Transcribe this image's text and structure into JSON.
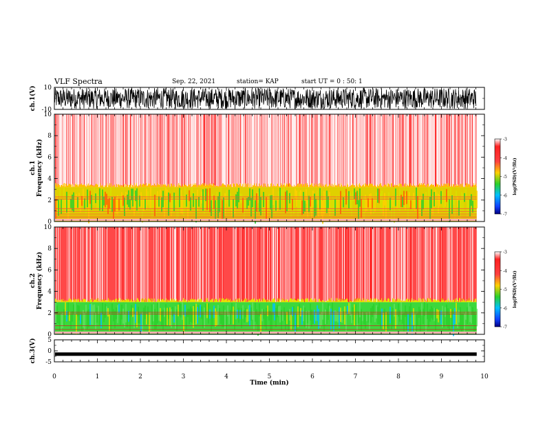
{
  "header": {
    "title": "VLF Spectra",
    "date": "Sep. 22, 2021",
    "station": "station= KAP",
    "start_ut": "start  UT =   0 : 50: 1"
  },
  "colors": {
    "scale": [
      "#ffffff",
      "#ff2020",
      "#ffd000",
      "#d8e000",
      "#2ad02a",
      "#00c0ff",
      "#1060ff",
      "#000090"
    ]
  },
  "chart_data": [
    {
      "type": "line",
      "panel": "ch1-waveform",
      "ylabel": "ch.1(V)",
      "ylim": [
        -10,
        10
      ],
      "yticks": [
        "10",
        "-10"
      ],
      "xlim": [
        0,
        10
      ],
      "description_values": {
        "amplitude_min": -10,
        "amplitude_max": 10
      }
    },
    {
      "type": "heatmap",
      "panel": "ch1-spectrogram",
      "ylabel": "ch.1\nFrequency  (kHz)",
      "ylim": [
        0,
        10
      ],
      "yticks": [
        "0",
        "2",
        "4",
        "6",
        "8",
        "10"
      ],
      "xlim": [
        0,
        9.82
      ],
      "bands": [
        {
          "fmin": 0,
          "fmax": 3.2,
          "log_psd": -4.6
        },
        {
          "fmin": 3.2,
          "fmax": 10,
          "log_psd": -3.3
        }
      ],
      "colorbar": {
        "label": "log(PSD)(V²/Hz)",
        "range": [
          -7,
          -3
        ],
        "ticks": [
          "-3",
          "-4",
          "-5",
          "-6",
          "-7"
        ]
      }
    },
    {
      "type": "heatmap",
      "panel": "ch2-spectrogram",
      "ylabel": "ch.2\nFrequency  (kHz)",
      "ylim": [
        0,
        10
      ],
      "yticks": [
        "0",
        "2",
        "4",
        "6",
        "8",
        "10"
      ],
      "xlim": [
        0,
        9.82
      ],
      "bands": [
        {
          "fmin": 0,
          "fmax": 3.0,
          "log_psd": -5.0
        },
        {
          "fmin": 3.0,
          "fmax": 10,
          "log_psd": -3.6
        }
      ],
      "colorbar": {
        "label": "log(PSD)(V²/Hz)",
        "range": [
          -7,
          -3
        ],
        "ticks": [
          "-3",
          "-4",
          "-5",
          "-6",
          "-7"
        ]
      }
    },
    {
      "type": "line",
      "panel": "ch3-waveform",
      "ylabel": "ch.3(V)",
      "ylim": [
        -5,
        5
      ],
      "yticks": [
        "5",
        "0",
        "-5"
      ],
      "xlim": [
        0,
        10
      ],
      "level": -1.5,
      "xlabel": "Time  (min)",
      "xticks": [
        "0",
        "1",
        "2",
        "3",
        "4",
        "5",
        "6",
        "7",
        "8",
        "9",
        "10"
      ]
    }
  ]
}
